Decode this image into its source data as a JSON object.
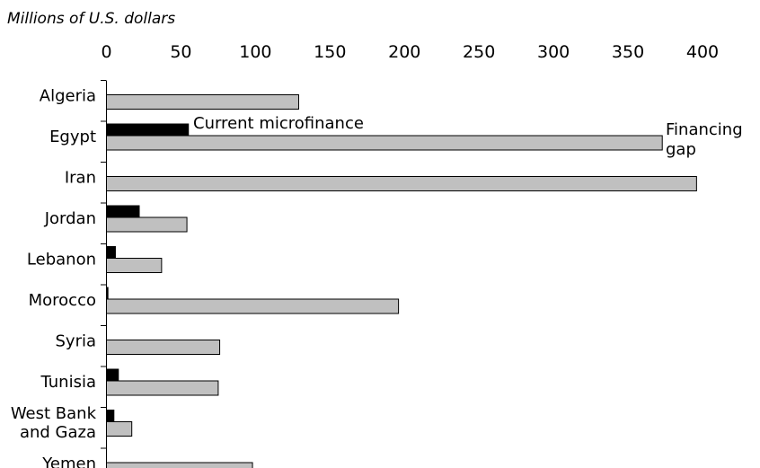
{
  "chart_data": {
    "type": "bar",
    "orientation": "horizontal",
    "unit_label": "Millions of U.S. dollars",
    "xlim": [
      0,
      400
    ],
    "ticks": [
      0,
      50,
      100,
      150,
      200,
      250,
      300,
      350,
      400
    ],
    "categories": [
      "Algeria",
      "Egypt",
      "Iran",
      "Jordan",
      "Lebanon",
      "Morocco",
      "Syria",
      "Tunisia",
      "West Bank and Gaza",
      "Yemen"
    ],
    "category_lines": [
      [
        "Algeria"
      ],
      [
        "Egypt"
      ],
      [
        "Iran"
      ],
      [
        "Jordan"
      ],
      [
        "Lebanon"
      ],
      [
        "Morocco"
      ],
      [
        "Syria"
      ],
      [
        "Tunisia"
      ],
      [
        "West Bank",
        "and Gaza"
      ],
      [
        "Yemen"
      ]
    ],
    "series": [
      {
        "name": "Current microfinance",
        "color": "#000000",
        "values": [
          0,
          55,
          0,
          22,
          6,
          1,
          0,
          8,
          5,
          0
        ]
      },
      {
        "name": "Financing gap",
        "color": "#c0c0c0",
        "values": [
          129,
          373,
          396,
          54,
          37,
          196,
          76,
          75,
          17,
          98
        ]
      }
    ],
    "annotations": {
      "series0_label": "Current microfinance",
      "series1_label_lines": [
        "Financing",
        "gap"
      ]
    },
    "grid": false,
    "legend": "inline annotations"
  }
}
